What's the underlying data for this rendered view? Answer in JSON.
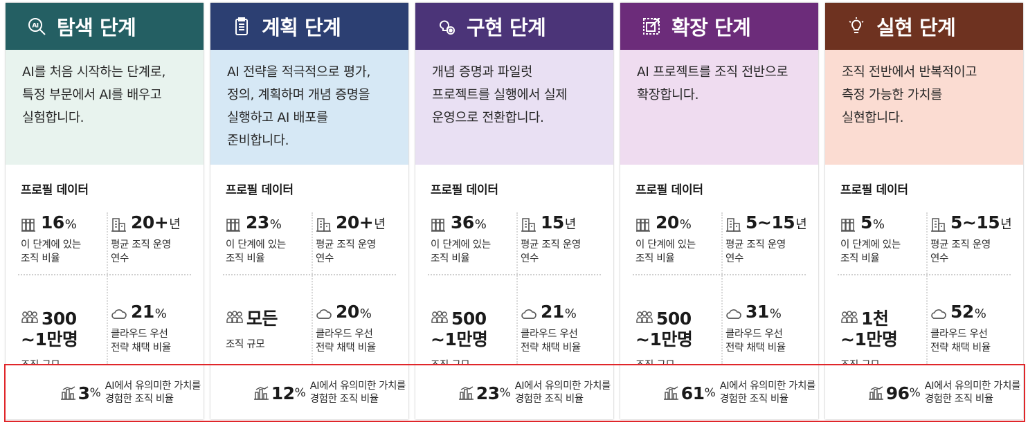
{
  "highlight_color": "#e0262a",
  "stages": [
    {
      "title": "탐색 단계",
      "icon": "ai-search-icon",
      "header_color": "#245f63",
      "desc_bg": "#e8f3ee",
      "description": "AI를 처음 시작하는 단계로,\n특정 부문에서 AI를 배우고\n실험합니다.",
      "profile_title": "프로필 데이터",
      "org_share": {
        "value": "16",
        "unit": "%",
        "label": "이 단계에 있는\n조직 비율"
      },
      "years": {
        "value": "20+",
        "unit": "년",
        "label": "평균 조직 운영\n연수"
      },
      "size": {
        "value": "300\n~1만명",
        "label": "조직 규모"
      },
      "cloud": {
        "value": "21",
        "unit": "%",
        "label": "클라우드 우선\n전략 채택 비율"
      },
      "value_realized": {
        "value": "3",
        "unit": "%",
        "label": "AI에서 유의미한 가치를\n경험한 조직 비율"
      }
    },
    {
      "title": "계획 단계",
      "icon": "clipboard-icon",
      "header_color": "#2c3f72",
      "desc_bg": "#d6e8f5",
      "description": "AI 전략을 적극적으로 평가,\n정의, 계획하며 개념 증명을\n실행하고 AI 배포를\n준비합니다.",
      "profile_title": "프로필 데이터",
      "org_share": {
        "value": "23",
        "unit": "%",
        "label": "이 단계에 있는\n조직 비율"
      },
      "years": {
        "value": "20+",
        "unit": "년",
        "label": "평균 조직 운영\n연수"
      },
      "size": {
        "value": "모든",
        "label": "조직 규모"
      },
      "cloud": {
        "value": "20",
        "unit": "%",
        "label": "클라우드 우선\n전략 채택 비율"
      },
      "value_realized": {
        "value": "12",
        "unit": "%",
        "label": "AI에서 유의미한 가치를\n경험한 조직 비율"
      }
    },
    {
      "title": "구현 단계",
      "icon": "lightbulb-gear-icon",
      "header_color": "#4b3478",
      "desc_bg": "#e9e0f3",
      "description": "개념 증명과 파일럿\n프로젝트를 실행에서 실제\n운영으로 전환합니다.",
      "profile_title": "프로필 데이터",
      "org_share": {
        "value": "36",
        "unit": "%",
        "label": "이 단계에 있는\n조직 비율"
      },
      "years": {
        "value": "15",
        "unit": "년",
        "label": "평균 조직 운영\n연수"
      },
      "size": {
        "value": "500\n~1만명",
        "label": "조직 규모"
      },
      "cloud": {
        "value": "21",
        "unit": "%",
        "label": "클라우드 우선\n전략 채택 비율"
      },
      "value_realized": {
        "value": "23",
        "unit": "%",
        "label": "AI에서 유의미한 가치를\n경험한 조직 비율"
      }
    },
    {
      "title": "확장 단계",
      "icon": "expand-icon",
      "header_color": "#6c2c7a",
      "desc_bg": "#efdcf0",
      "description": "AI 프로젝트를 조직 전반으로\n확장합니다.",
      "profile_title": "프로필 데이터",
      "org_share": {
        "value": "20",
        "unit": "%",
        "label": "이 단계에 있는\n조직 비율"
      },
      "years": {
        "value": "5~15",
        "unit": "년",
        "label": "평균 조직 운영\n연수"
      },
      "size": {
        "value": "500\n~1만명",
        "label": "조직 규모"
      },
      "cloud": {
        "value": "31",
        "unit": "%",
        "label": "클라우드 우선\n전략 채택 비율"
      },
      "value_realized": {
        "value": "61",
        "unit": "%",
        "label": "AI에서 유의미한 가치를\n경험한 조직 비율"
      }
    },
    {
      "title": "실현 단계",
      "icon": "idea-bulb-icon",
      "header_color": "#6e3220",
      "desc_bg": "#fbdcd2",
      "description": "조직 전반에서 반복적이고\n측정 가능한 가치를\n실현합니다.",
      "profile_title": "프로필 데이터",
      "org_share": {
        "value": "5",
        "unit": "%",
        "label": "이 단계에 있는\n조직 비율"
      },
      "years": {
        "value": "5~15",
        "unit": "년",
        "label": "평균 조직 운영\n연수"
      },
      "size": {
        "value": "1천\n~1만명",
        "label": "조직 규모"
      },
      "cloud": {
        "value": "52",
        "unit": "%",
        "label": "클라우드 우선\n전략 채택 비율"
      },
      "value_realized": {
        "value": "96",
        "unit": "%",
        "label": "AI에서 유의미한 가치를\n경험한 조직 비율"
      }
    }
  ]
}
